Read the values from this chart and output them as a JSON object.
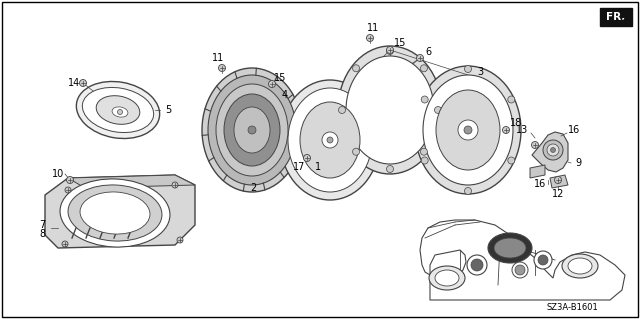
{
  "background_color": "#ffffff",
  "border_color": "#000000",
  "diagram_code": "SZ3A-B1601",
  "fr_label": "FR.",
  "line_color": "#444444",
  "text_color": "#000000",
  "font_size": 7.0,
  "fig_w": 6.4,
  "fig_h": 3.19
}
